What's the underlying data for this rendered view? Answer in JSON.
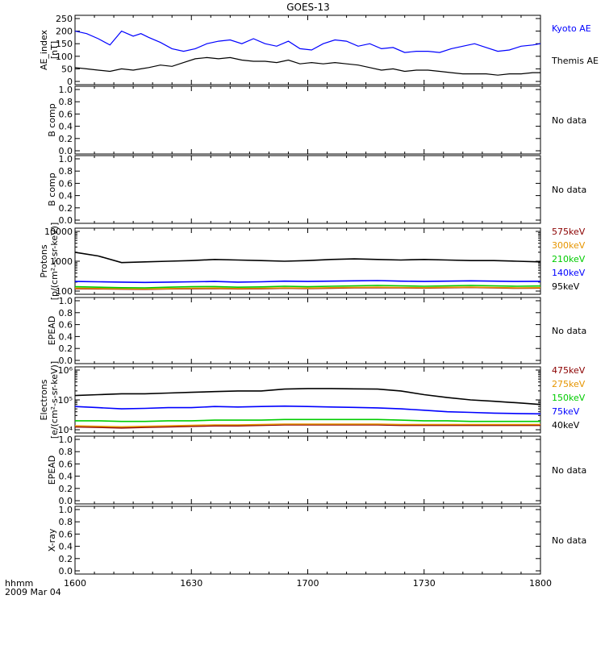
{
  "title": "GOES-13",
  "time_axis": {
    "row_label": "hhmm",
    "date_label": "2009 Mar 04",
    "tick_labels": [
      "1600",
      "1630",
      "1700",
      "1730",
      "1800"
    ],
    "ticks_minutes": [
      0,
      30,
      60,
      90,
      120
    ],
    "range_minutes": [
      0,
      120
    ],
    "minor_tick_step_minutes": 5
  },
  "no_data_text": "No data",
  "chart_data": [
    {
      "type": "line",
      "ylabel": "AE_index\n[nT]",
      "ylim": [
        0,
        250
      ],
      "yticks": [
        0,
        50,
        100,
        150,
        200,
        250
      ],
      "scale": "linear",
      "x": [
        0,
        3,
        6,
        9,
        12,
        15,
        17,
        19,
        22,
        25,
        28,
        31,
        34,
        37,
        40,
        43,
        46,
        49,
        52,
        55,
        58,
        61,
        64,
        67,
        70,
        73,
        76,
        79,
        82,
        85,
        88,
        91,
        94,
        97,
        100,
        103,
        106,
        109,
        112,
        115,
        118,
        120
      ],
      "series": [
        {
          "name": "Kyoto AE",
          "color": "#0000ff",
          "values": [
            200,
            190,
            170,
            145,
            200,
            180,
            190,
            175,
            155,
            130,
            120,
            130,
            150,
            160,
            165,
            150,
            170,
            150,
            140,
            160,
            130,
            125,
            150,
            165,
            160,
            140,
            150,
            130,
            135,
            115,
            120,
            120,
            115,
            130,
            140,
            150,
            135,
            120,
            125,
            140,
            145,
            150
          ]
        },
        {
          "name": "Themis AE",
          "color": "#000000",
          "values": [
            55,
            50,
            45,
            40,
            50,
            45,
            50,
            55,
            65,
            60,
            75,
            90,
            95,
            90,
            95,
            85,
            80,
            80,
            75,
            85,
            70,
            75,
            70,
            75,
            70,
            65,
            55,
            45,
            50,
            40,
            45,
            45,
            40,
            35,
            30,
            30,
            30,
            25,
            30,
            30,
            35,
            35
          ]
        }
      ]
    },
    {
      "type": "line",
      "ylabel": "B comp",
      "ylim": [
        0,
        1
      ],
      "yticks": [
        0,
        0.2,
        0.4,
        0.6,
        0.8,
        1.0
      ],
      "tick_labels": [
        "0.0",
        "0.2",
        "0.4",
        "0.6",
        "0.8",
        "1.0"
      ],
      "series": []
    },
    {
      "type": "line",
      "ylabel": "B comp",
      "ylim": [
        0,
        1
      ],
      "yticks": [
        0,
        0.2,
        0.4,
        0.6,
        0.8,
        1.0
      ],
      "tick_labels": [
        "0.0",
        "0.2",
        "0.4",
        "0.6",
        "0.8",
        "1.0"
      ],
      "series": []
    },
    {
      "type": "line",
      "ylabel": "Protons\n[p/(cm²-s-sr-keV)]",
      "ylim": [
        100,
        10000
      ],
      "yticks": [
        100,
        1000,
        10000
      ],
      "tick_labels": [
        "100",
        "1000",
        "10000"
      ],
      "scale": "log",
      "x": [
        0,
        6,
        12,
        18,
        24,
        30,
        36,
        42,
        48,
        54,
        60,
        66,
        72,
        78,
        84,
        90,
        96,
        102,
        108,
        114,
        120
      ],
      "series": [
        {
          "name": "575keV",
          "color": "#8b0000",
          "values": [
            120,
            118,
            116,
            115,
            118,
            120,
            122,
            118,
            120,
            124,
            122,
            125,
            128,
            130,
            128,
            126,
            130,
            132,
            128,
            124,
            126
          ]
        },
        {
          "name": "300keV",
          "color": "#e69500",
          "values": [
            125,
            123,
            120,
            118,
            121,
            124,
            126,
            122,
            124,
            128,
            126,
            130,
            133,
            135,
            132,
            130,
            134,
            136,
            132,
            128,
            130
          ]
        },
        {
          "name": "210keV",
          "color": "#00cc00",
          "values": [
            140,
            135,
            130,
            128,
            135,
            140,
            142,
            135,
            138,
            145,
            140,
            145,
            150,
            155,
            150,
            145,
            150,
            155,
            150,
            145,
            148
          ]
        },
        {
          "name": "140keV",
          "color": "#0000ff",
          "values": [
            210,
            205,
            200,
            195,
            200,
            205,
            210,
            200,
            205,
            215,
            210,
            215,
            220,
            225,
            215,
            210,
            215,
            220,
            215,
            210,
            212
          ]
        },
        {
          "name": "95keV",
          "color": "#000000",
          "values": [
            2000,
            1500,
            900,
            950,
            1000,
            1050,
            1150,
            1100,
            1050,
            1000,
            1050,
            1150,
            1200,
            1150,
            1100,
            1150,
            1100,
            1050,
            1050,
            1000,
            950
          ]
        }
      ]
    },
    {
      "type": "line",
      "ylabel": "EPEAD",
      "ylim": [
        0,
        1
      ],
      "yticks": [
        0,
        0.2,
        0.4,
        0.6,
        0.8,
        1.0
      ],
      "tick_labels": [
        "0.0",
        "0.2",
        "0.4",
        "0.6",
        "0.8",
        "1.0"
      ],
      "series": []
    },
    {
      "type": "line",
      "ylabel": "Electrons\n[e/(cm²-s-sr-keV)]",
      "ylim": [
        10000,
        1000000
      ],
      "yticks": [
        10000,
        100000,
        1000000
      ],
      "tick_labels": [
        "10⁴",
        "10⁵",
        "10⁶"
      ],
      "scale": "log",
      "x": [
        0,
        6,
        12,
        18,
        24,
        30,
        36,
        42,
        48,
        54,
        60,
        66,
        72,
        78,
        84,
        90,
        96,
        102,
        108,
        114,
        120
      ],
      "series": [
        {
          "name": "475keV",
          "color": "#8b0000",
          "values": [
            12500,
            12000,
            11500,
            12000,
            12500,
            13000,
            13500,
            13500,
            14000,
            14500,
            14500,
            14500,
            14500,
            14500,
            14000,
            14000,
            14000,
            14000,
            14000,
            14000,
            14000
          ]
        },
        {
          "name": "275keV",
          "color": "#e69500",
          "values": [
            13500,
            13000,
            12500,
            13000,
            13500,
            14000,
            14500,
            14500,
            15000,
            15500,
            15500,
            15500,
            15500,
            15500,
            15000,
            15000,
            15000,
            15000,
            15000,
            15000,
            15000
          ]
        },
        {
          "name": "150keV",
          "color": "#00cc00",
          "values": [
            20000,
            20000,
            19000,
            19000,
            20000,
            20000,
            21000,
            21000,
            21000,
            22000,
            22000,
            22000,
            22000,
            22000,
            21000,
            20000,
            20000,
            19000,
            19000,
            19000,
            19000
          ]
        },
        {
          "name": "75keV",
          "color": "#0000ff",
          "values": [
            60000,
            55000,
            50000,
            52000,
            55000,
            55000,
            60000,
            58000,
            60000,
            62000,
            60000,
            58000,
            56000,
            54000,
            50000,
            45000,
            40000,
            38000,
            36000,
            35000,
            34000
          ]
        },
        {
          "name": "40keV",
          "color": "#000000",
          "values": [
            140000,
            150000,
            160000,
            160000,
            170000,
            180000,
            190000,
            200000,
            200000,
            230000,
            240000,
            240000,
            235000,
            230000,
            200000,
            150000,
            120000,
            100000,
            90000,
            80000,
            70000
          ]
        }
      ]
    },
    {
      "type": "line",
      "ylabel": "EPEAD",
      "ylim": [
        0,
        1
      ],
      "yticks": [
        0,
        0.2,
        0.4,
        0.6,
        0.8,
        1.0
      ],
      "tick_labels": [
        "0.0",
        "0.2",
        "0.4",
        "0.6",
        "0.8",
        "1.0"
      ],
      "series": []
    },
    {
      "type": "line",
      "ylabel": "X-ray",
      "ylim": [
        0,
        1
      ],
      "yticks": [
        0,
        0.2,
        0.4,
        0.6,
        0.8,
        1.0
      ],
      "tick_labels": [
        "0.0",
        "0.2",
        "0.4",
        "0.6",
        "0.8",
        "1.0"
      ],
      "series": []
    }
  ]
}
